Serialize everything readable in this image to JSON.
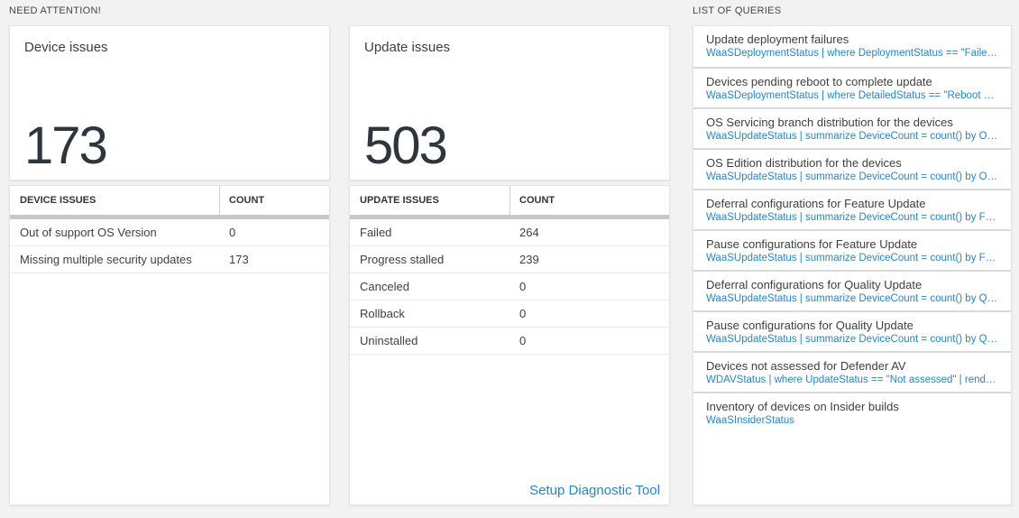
{
  "sections": {
    "need_attention": {
      "title": "NEED ATTENTION!"
    },
    "queries": {
      "title": "LIST OF QUERIES"
    }
  },
  "colors": {
    "background": "#f2f2f2",
    "link_blue": "#2387cd",
    "big_number": "#2e353d",
    "header_bar": "#c8c8c8"
  },
  "device_card": {
    "title": "Device issues",
    "count": "173",
    "table": {
      "headers": [
        "DEVICE ISSUES",
        "COUNT"
      ],
      "rows": [
        [
          "Out of support OS Version",
          "0"
        ],
        [
          "Missing multiple security updates",
          "173"
        ]
      ]
    }
  },
  "update_card": {
    "title": "Update issues",
    "count": "503",
    "table": {
      "headers": [
        "UPDATE ISSUES",
        "COUNT"
      ],
      "rows": [
        [
          "Failed",
          "264"
        ],
        [
          "Progress stalled",
          "239"
        ],
        [
          "Canceled",
          "0"
        ],
        [
          "Rollback",
          "0"
        ],
        [
          "Uninstalled",
          "0"
        ]
      ]
    },
    "link": "Setup Diagnostic Tool"
  },
  "query_list": {
    "items": [
      {
        "title": "Update deployment failures",
        "query": "WaaSDeploymentStatus | where DeploymentStatus == \"Failed\" |..."
      },
      {
        "title": "Devices pending reboot to complete update",
        "query": "WaaSDeploymentStatus | where DetailedStatus == \"Reboot pend..."
      },
      {
        "title": "OS Servicing branch distribution for the devices",
        "query": "WaaSUpdateStatus | summarize DeviceCount = count() by OSSer..."
      },
      {
        "title": "OS Edition distribution for the devices",
        "query": "WaaSUpdateStatus | summarize DeviceCount = count() by OSEdit..."
      },
      {
        "title": "Deferral configurations for Feature Update",
        "query": "WaaSUpdateStatus | summarize DeviceCount = count() by Featur..."
      },
      {
        "title": "Pause configurations for Feature Update",
        "query": "WaaSUpdateStatus | summarize DeviceCount = count() by Featur..."
      },
      {
        "title": "Deferral configurations for Quality Update",
        "query": "WaaSUpdateStatus | summarize DeviceCount = count() by Qualit..."
      },
      {
        "title": "Pause configurations for Quality Update",
        "query": "WaaSUpdateStatus | summarize DeviceCount = count() by Qualit..."
      },
      {
        "title": "Devices not assessed for Defender AV",
        "query": "WDAVStatus | where UpdateStatus == \"Not assessed\" | render ta..."
      },
      {
        "title": "Inventory of devices on Insider builds",
        "query": "WaaSInsiderStatus"
      }
    ]
  }
}
